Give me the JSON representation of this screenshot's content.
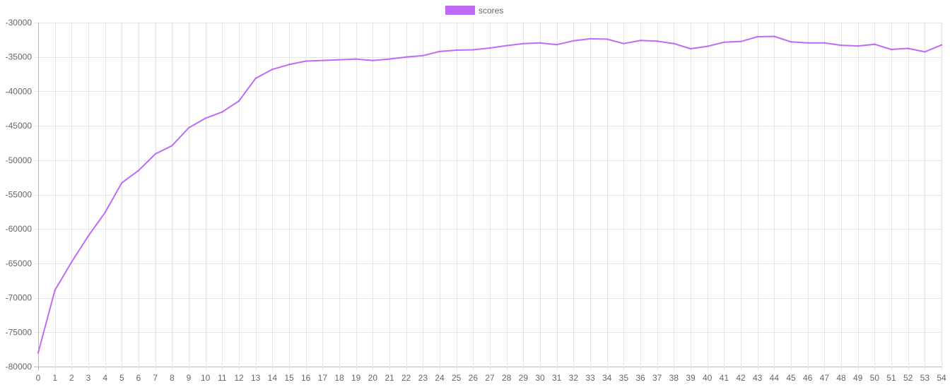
{
  "chart_data": {
    "type": "line",
    "title": "",
    "xlabel": "",
    "ylabel": "",
    "legend_position": "top",
    "grid": true,
    "x": [
      0,
      1,
      2,
      3,
      4,
      5,
      6,
      7,
      8,
      9,
      10,
      11,
      12,
      13,
      14,
      15,
      16,
      17,
      18,
      19,
      20,
      21,
      22,
      23,
      24,
      25,
      26,
      27,
      28,
      29,
      30,
      31,
      32,
      33,
      34,
      35,
      36,
      37,
      38,
      39,
      40,
      41,
      42,
      43,
      44,
      45,
      46,
      47,
      48,
      49,
      50,
      51,
      52,
      53,
      54
    ],
    "xlim": [
      0,
      54
    ],
    "ylim": [
      -80000,
      -30000
    ],
    "yticks": [
      -30000,
      -35000,
      -40000,
      -45000,
      -50000,
      -55000,
      -60000,
      -65000,
      -70000,
      -75000,
      -80000
    ],
    "series": [
      {
        "name": "scores",
        "color": "#bf6bf7",
        "values": [
          -78000,
          -68900,
          -64800,
          -61000,
          -57600,
          -53300,
          -51500,
          -49100,
          -47900,
          -45300,
          -43900,
          -43000,
          -41400,
          -38100,
          -36800,
          -36100,
          -35600,
          -35500,
          -35400,
          -35300,
          -35500,
          -35300,
          -35000,
          -34800,
          -34200,
          -34000,
          -33950,
          -33700,
          -33350,
          -33050,
          -32950,
          -33200,
          -32650,
          -32350,
          -32400,
          -33050,
          -32600,
          -32700,
          -33050,
          -33800,
          -33450,
          -32850,
          -32750,
          -32050,
          -32000,
          -32800,
          -32950,
          -32950,
          -33300,
          -33400,
          -33150,
          -33900,
          -33750,
          -34250,
          -33250
        ]
      }
    ]
  }
}
